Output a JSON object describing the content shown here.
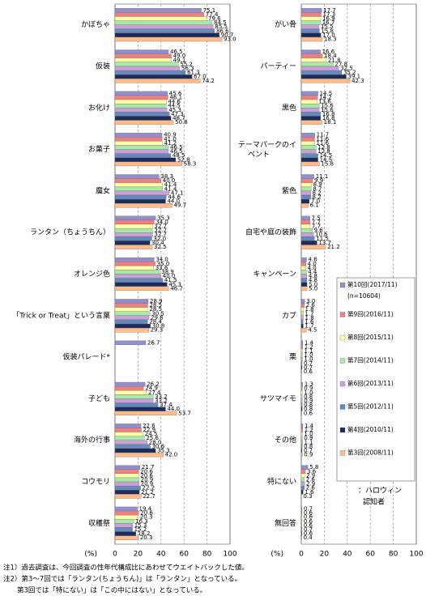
{
  "chart_data": {
    "type": "bar",
    "orientation": "horizontal",
    "categories": [
      "かぼちゃ",
      "仮装",
      "お化け",
      "お菓子",
      "魔女",
      "ランタン（ちょうちん）",
      "オレンジ色",
      "「Trick or Treat」という言葉",
      "仮装パレード*",
      "子ども",
      "海外の行事",
      "コウモリ",
      "収穫祭",
      "がい骨",
      "パーティー",
      "黒色",
      "テーマパークのイベント",
      "紫色",
      "自宅や庭の装飾",
      "キャンペーン",
      "カブ",
      "栗",
      "サツマイモ",
      "その他",
      "特にない",
      "無回答"
    ],
    "series": [
      {
        "name": "第10回(2017/11)",
        "color": "#8f8fcf",
        "values": [
          75.1,
          46.5,
          45.6,
          40.9,
          38.3,
          35.3,
          34.0,
          28.9,
          26.7,
          26.2,
          22.6,
          21.7,
          19.4,
          17.7,
          16.6,
          14.5,
          11.7,
          11.1,
          7.5,
          4.6,
          3.0,
          1.4,
          1.3,
          1.4,
          5.8,
          0.7
        ],
        "value_labels": [
          "75.1",
          "46.5",
          "45.6",
          "40.9",
          "38.3",
          "35.3",
          "34.0",
          "28.9",
          "26.7",
          "26.2",
          "22.6",
          "21.7",
          "19.4",
          "17.7",
          "16.6",
          "14.5",
          "11.7",
          "11.1",
          "7.5",
          "4.6",
          "3.0",
          "1.4",
          "1.3",
          "1.4",
          "5.8",
          "0.7"
        ]
      },
      {
        "name": "第9回(2016/11)",
        "color": "#ee8080",
        "values": [
          77.4,
          49.0,
          46.1,
          41.0,
          40.0,
          34.0,
          35.0,
          28.5,
          null,
          24.9,
          22.9,
          20.6,
          20.6,
          17.3,
          18.4,
          14.2,
          11.6,
          9.9,
          7.7,
          4.0,
          2.6,
          1.2,
          0.9,
          1.2,
          3.6,
          0.6
        ],
        "value_labels": [
          "77.4",
          "49.0",
          "46.1",
          "41.0",
          "40.0",
          "34.0",
          "35.0",
          "28.5",
          null,
          "24.9",
          "22.9",
          "20.6",
          "20.6",
          "17.3",
          "18.4",
          "14.2",
          "11.6",
          "9.9",
          "7.7",
          "4.0",
          "2.6",
          "1.2",
          "0.9",
          "1.2",
          "3.6",
          "0.6"
        ]
      },
      {
        "name": "第8回(2015/11)",
        "color": "#ffffa8",
        "values": [
          79.6,
          49.1,
          44.6,
          41.2,
          41.4,
          32.7,
          33.6,
          28.5,
          null,
          27.4,
          24.5,
          20.6,
          20.3,
          16.9,
          21.8,
          13.6,
          11.6,
          8.9,
          7.7,
          4.0,
          1.8,
          1.1,
          1.0,
          1.0,
          2.9,
          0.6
        ],
        "value_labels": [
          "79.6",
          "49.1",
          "44.6",
          "41.2",
          "41.4",
          "32.7",
          "33.6",
          "28.5",
          null,
          "27.4",
          "24.5",
          "20.6",
          "20.3",
          "16.9",
          "21.8",
          "13.6",
          "11.6",
          "8.9",
          "7.7",
          "4.0",
          "1.8",
          "1.1",
          "1.0",
          "1.0",
          "2.9",
          "0.6"
        ]
      },
      {
        "name": "第7回(2014/11)",
        "color": "#a8e8a8",
        "values": [
          84.5,
          55.2,
          44.5,
          46.5,
          41.4,
          32.7,
          38.9,
          30.5,
          null,
          33.2,
          25.6,
          20.9,
          16.3,
          16.7,
          27.8,
          15.6,
          12.8,
          8.7,
          9.6,
          4.4,
          1.7,
          1.0,
          0.8,
          0.9,
          2.6,
          0.6
        ],
        "value_labels": [
          "84.5",
          "55.2",
          "44.5",
          "46.5",
          "41.4",
          "32.7",
          "38.9",
          "30.5",
          null,
          "33.2",
          "25.6",
          "20.9",
          "16.3",
          "16.7",
          "27.8",
          "15.6",
          "12.8",
          "8.7",
          "9.6",
          "4.4",
          "1.7",
          "1.0",
          "0.8",
          "0.9",
          "2.6",
          "0.6"
        ]
      },
      {
        "name": "第6回(2013/11)",
        "color": "#c9a0d8",
        "values": [
          85.5,
          56.3,
          45.3,
          46.5,
          47.1,
          32.7,
          40.0,
          29.6,
          null,
          33.2,
          28.0,
          20.9,
          15.3,
          15.5,
          32.5,
          15.6,
          12.8,
          8.2,
          10.6,
          4.8,
          1.8,
          1.0,
          0.9,
          1.1,
          2.9,
          0.6
        ],
        "value_labels": [
          "85.5",
          "56.3",
          "45.3",
          "46.5",
          "47.1",
          "32.7",
          "40.0",
          "29.6",
          null,
          "33.2",
          "28.0",
          "20.9",
          "15.3",
          "15.5",
          "32.5",
          "15.6",
          "12.8",
          "8.2",
          "10.6",
          "4.8",
          "1.8",
          "1.0",
          "0.9",
          "1.1",
          "2.9",
          "0.6"
        ]
      },
      {
        "name": "第5回(2012/11)",
        "color": "#6688bb",
        "values": [
          86.6,
          61.3,
          47.3,
          48.5,
          44.6,
          32.0,
          41.5,
          28.4,
          null,
          37.4,
          30.6,
          22.2,
          15.2,
          15.8,
          35.2,
          16.8,
          14.5,
          8.2,
          11.5,
          4.8,
          1.6,
          0.7,
          0.8,
          0.8,
          2.6,
          0.7
        ],
        "value_labels": [
          "86.6",
          "61.3",
          "47.3",
          "48.5",
          "44.6",
          "32.0",
          "41.5",
          "28.4",
          null,
          "37.4",
          "30.6",
          "22.2",
          "15.2",
          "15.8",
          "35.2",
          "16.8",
          "14.5",
          "8.2",
          "11.5",
          "4.8",
          "1.6",
          "0.7",
          "0.8",
          "0.8",
          "2.6",
          "0.7"
        ]
      },
      {
        "name": "第4回(2010/11)",
        "color": "#1c2c5c",
        "values": [
          90.7,
          67.0,
          48.7,
          52.8,
          44.0,
          30.4,
          45.3,
          30.8,
          null,
          44.0,
          35.3,
          21.2,
          18.2,
          17.0,
          39.1,
          16.8,
          14.5,
          7.0,
          13.7,
          5.0,
          1.7,
          0.7,
          0.8,
          0.7,
          1.6,
          0.6
        ],
        "value_labels": [
          "90.7",
          "67.0",
          "48.7",
          "52.8",
          "44.0",
          "30.4",
          "45.3",
          "30.8",
          null,
          "44.0",
          "35.3",
          "21.2",
          "18.2",
          "17.0",
          "39.1",
          "16.8",
          "14.5",
          "7.0",
          "13.7",
          "5.0",
          "1.7",
          "0.7",
          "0.8",
          "0.7",
          "1.6",
          "0.6"
        ]
      },
      {
        "name": "第3回(2008/11)",
        "color": "#ffbb88",
        "values": [
          93.0,
          74.2,
          50.8,
          58.3,
          49.7,
          32.5,
          46.7,
          29.3,
          null,
          53.7,
          42.0,
          22.7,
          20.3,
          18.3,
          42.3,
          18.1,
          15.8,
          6.1,
          21.2,
          5.0,
          4.5,
          0.6,
          0.6,
          0.9,
          0.3,
          0.4
        ],
        "value_labels": [
          "93.0",
          "74.2",
          "50.8",
          "58.3",
          "49.7",
          "32.5",
          "46.7",
          "29.3",
          null,
          "53.7",
          "42.0",
          "22.7",
          "20.3",
          "18.3",
          "42.3",
          "18.1",
          "15.8",
          "6.1",
          "21.2",
          "5.0",
          "4.5",
          "0.6",
          "0.6",
          "0.9",
          "0.3",
          "0.4"
        ]
      }
    ],
    "sample_size": "(n=10604)",
    "legend_annotation": [
      "：ハロウィン",
      "認知者"
    ],
    "xlabel": "(%)",
    "xlim": [
      0,
      100
    ],
    "xticks": [
      0,
      20,
      40,
      60,
      80,
      100
    ],
    "grid": true,
    "notes": [
      "注1）過去調査は、今回調査の性年代構成比にあわせてウエイトバックした値。",
      "注2）第3～7回では「ランタン(ちょうちん)」は「ランタン」となっている。",
      "　　第3回では「特にない」は「この中にはない」となっている。"
    ]
  }
}
